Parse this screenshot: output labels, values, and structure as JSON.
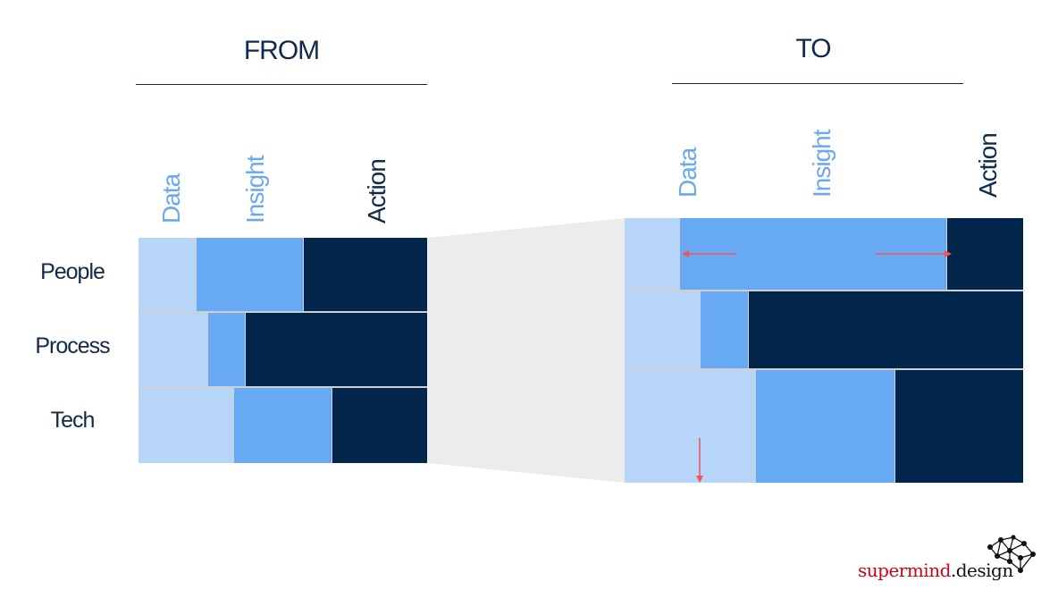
{
  "from": {
    "title": "FROM",
    "columns": [
      "Data",
      "Insight",
      "Action"
    ],
    "rows": [
      {
        "label": "People",
        "shares": [
          0.2,
          0.37,
          0.43
        ]
      },
      {
        "label": "Process",
        "shares": [
          0.24,
          0.13,
          0.63
        ]
      },
      {
        "label": "Tech",
        "shares": [
          0.33,
          0.34,
          0.33
        ]
      }
    ]
  },
  "to": {
    "title": "TO",
    "columns": [
      "Data",
      "Insight",
      "Action"
    ],
    "rows": [
      {
        "shares": [
          0.14,
          0.67,
          0.19
        ]
      },
      {
        "shares": [
          0.19,
          0.12,
          0.69
        ]
      },
      {
        "shares": [
          0.33,
          0.35,
          0.32
        ]
      }
    ]
  },
  "colors": {
    "data": "#b6d5f8",
    "insight": "#68a9f3",
    "action": "#02254c",
    "data_label": "#6aa8f0",
    "insight_label": "#6aa8f0",
    "action_label": "#0f2a4a",
    "arrow": "#f05454",
    "zoom": "#ececee",
    "divider": "#cfcfcf"
  },
  "brand": {
    "name_part1": "supermind",
    "name_part2": ".design",
    "icon": "network-graph-icon"
  }
}
